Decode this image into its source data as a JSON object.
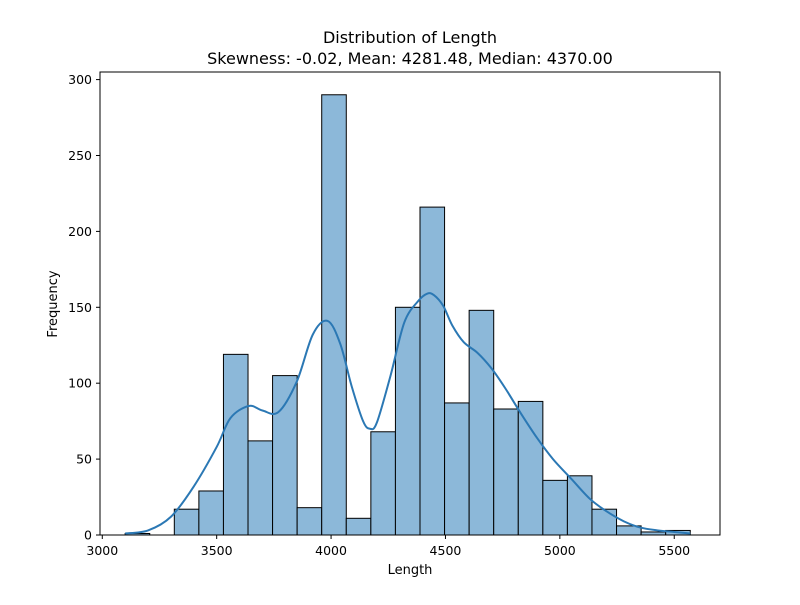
{
  "chart_data": {
    "type": "bar",
    "title": "Distribution of Length",
    "subtitle": "Skewness: -0.02, Mean: 4281.48, Median: 4370.00",
    "xlabel": "Length",
    "ylabel": "Frequency",
    "xlim": [
      2990,
      5700
    ],
    "ylim": [
      0,
      305
    ],
    "xticks": [
      3000,
      3500,
      4000,
      4500,
      5000,
      5500
    ],
    "yticks": [
      0,
      50,
      100,
      150,
      200,
      250,
      300
    ],
    "grid": false,
    "colors": {
      "bar_fill": "#8cb8d9",
      "bar_edge": "#000000",
      "kde_line": "#2b78b4"
    },
    "bins": [
      {
        "x0": 3100,
        "x1": 3207.4,
        "count": 1
      },
      {
        "x0": 3207.4,
        "x1": 3314.8,
        "count": 0
      },
      {
        "x0": 3314.8,
        "x1": 3422.2,
        "count": 17
      },
      {
        "x0": 3422.2,
        "x1": 3529.6,
        "count": 29
      },
      {
        "x0": 3529.6,
        "x1": 3637.0,
        "count": 119
      },
      {
        "x0": 3637.0,
        "x1": 3744.3,
        "count": 62
      },
      {
        "x0": 3744.3,
        "x1": 3851.7,
        "count": 105
      },
      {
        "x0": 3851.7,
        "x1": 3959.1,
        "count": 18
      },
      {
        "x0": 3959.1,
        "x1": 4066.5,
        "count": 290
      },
      {
        "x0": 4066.5,
        "x1": 4173.9,
        "count": 11
      },
      {
        "x0": 4173.9,
        "x1": 4281.3,
        "count": 68
      },
      {
        "x0": 4281.3,
        "x1": 4388.7,
        "count": 150
      },
      {
        "x0": 4388.7,
        "x1": 4496.1,
        "count": 216
      },
      {
        "x0": 4496.1,
        "x1": 4603.5,
        "count": 87
      },
      {
        "x0": 4603.5,
        "x1": 4710.9,
        "count": 148
      },
      {
        "x0": 4710.9,
        "x1": 4818.3,
        "count": 83
      },
      {
        "x0": 4818.3,
        "x1": 4925.7,
        "count": 88
      },
      {
        "x0": 4925.7,
        "x1": 5033.0,
        "count": 36
      },
      {
        "x0": 5033.0,
        "x1": 5140.4,
        "count": 39
      },
      {
        "x0": 5140.4,
        "x1": 5247.8,
        "count": 17
      },
      {
        "x0": 5247.8,
        "x1": 5355.2,
        "count": 6
      },
      {
        "x0": 5355.2,
        "x1": 5462.6,
        "count": 2
      },
      {
        "x0": 5462.6,
        "x1": 5570.0,
        "count": 3
      }
    ],
    "kde": {
      "x": [
        3100,
        3200,
        3300,
        3400,
        3500,
        3560,
        3640,
        3700,
        3770,
        3850,
        3920,
        3985,
        4040,
        4090,
        4140,
        4170,
        4200,
        4260,
        4320,
        4380,
        4420,
        4450,
        4490,
        4530,
        4580,
        4640,
        4700,
        4760,
        4830,
        4900,
        4970,
        5050,
        5130,
        5200,
        5280,
        5350,
        5430,
        5500,
        5570
      ],
      "y": [
        1,
        3,
        12,
        32,
        58,
        77,
        85,
        82,
        81,
        101,
        132,
        141,
        126,
        98,
        75,
        70,
        74,
        105,
        140,
        154,
        159,
        158,
        151,
        138,
        127,
        120,
        110,
        97,
        80,
        64,
        50,
        37,
        24,
        16,
        9,
        5,
        3,
        2,
        1
      ]
    }
  }
}
